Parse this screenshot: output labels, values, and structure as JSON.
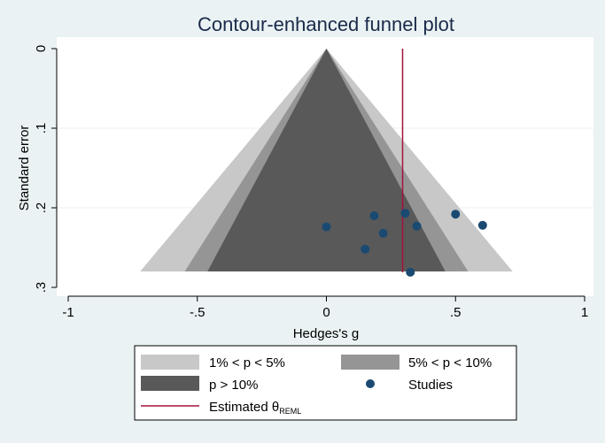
{
  "chart_data": {
    "type": "scatter",
    "title": "Contour-enhanced funnel plot",
    "xlabel": "Hedges's g",
    "ylabel": "Standard error",
    "xlim": [
      -1,
      1
    ],
    "ylim": [
      0,
      0.3
    ],
    "y_reversed": true,
    "grid": true,
    "x_ticks": [
      "-1",
      "-.5",
      "0",
      ".5",
      "1"
    ],
    "x_tick_values": [
      -1,
      -0.5,
      0,
      0.5,
      1
    ],
    "y_ticks": [
      "0",
      ".1",
      ".2",
      ".3"
    ],
    "y_tick_values": [
      0,
      0.1,
      0.2,
      0.3
    ],
    "funnel_center": 0,
    "funnel_max_se": 0.28,
    "contours": [
      {
        "label": "1% < p < 5%",
        "z": 2.576,
        "color": "#c8c8c8"
      },
      {
        "label": "5% < p < 10%",
        "z": 1.96,
        "color": "#959595"
      },
      {
        "label": "p > 10%",
        "z": 1.645,
        "color": "#595959"
      }
    ],
    "studies": {
      "label": "Studies",
      "color": "#1a4a72",
      "points": [
        {
          "x": 0.0,
          "y": 0.224
        },
        {
          "x": 0.185,
          "y": 0.21
        },
        {
          "x": 0.22,
          "y": 0.232
        },
        {
          "x": 0.15,
          "y": 0.252
        },
        {
          "x": 0.305,
          "y": 0.207
        },
        {
          "x": 0.35,
          "y": 0.223
        },
        {
          "x": 0.5,
          "y": 0.208
        },
        {
          "x": 0.605,
          "y": 0.222
        },
        {
          "x": 0.325,
          "y": 0.281
        }
      ]
    },
    "estimate": {
      "x": 0.295,
      "label": "Estimated θ",
      "label_sub": "REML",
      "color": "#a5123c"
    },
    "legend_position": "bottom"
  }
}
